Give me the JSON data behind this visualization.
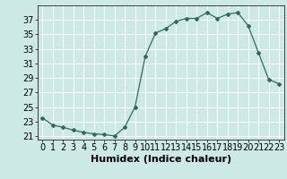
{
  "x": [
    0,
    1,
    2,
    3,
    4,
    5,
    6,
    7,
    8,
    9,
    10,
    11,
    12,
    13,
    14,
    15,
    16,
    17,
    18,
    19,
    20,
    21,
    22,
    23
  ],
  "y": [
    23.5,
    22.5,
    22.2,
    21.8,
    21.5,
    21.3,
    21.2,
    21.0,
    22.2,
    25.0,
    32.0,
    35.2,
    35.8,
    36.8,
    37.2,
    37.2,
    38.0,
    37.2,
    37.8,
    38.0,
    36.2,
    32.5,
    28.8,
    28.2
  ],
  "line_color": "#2e6b5e",
  "marker": "D",
  "marker_size": 2,
  "bg_color": "#cce9e5",
  "grid_color": "#ffffff",
  "xlabel": "Humidex (Indice chaleur)",
  "yticks": [
    21,
    23,
    25,
    27,
    29,
    31,
    33,
    35,
    37
  ],
  "xticks": [
    0,
    1,
    2,
    3,
    4,
    5,
    6,
    7,
    8,
    9,
    10,
    11,
    12,
    13,
    14,
    15,
    16,
    17,
    18,
    19,
    20,
    21,
    22,
    23
  ],
  "ylim": [
    20.5,
    39.0
  ],
  "xlim": [
    -0.5,
    23.5
  ],
  "xlabel_fontsize": 8,
  "tick_fontsize": 7
}
